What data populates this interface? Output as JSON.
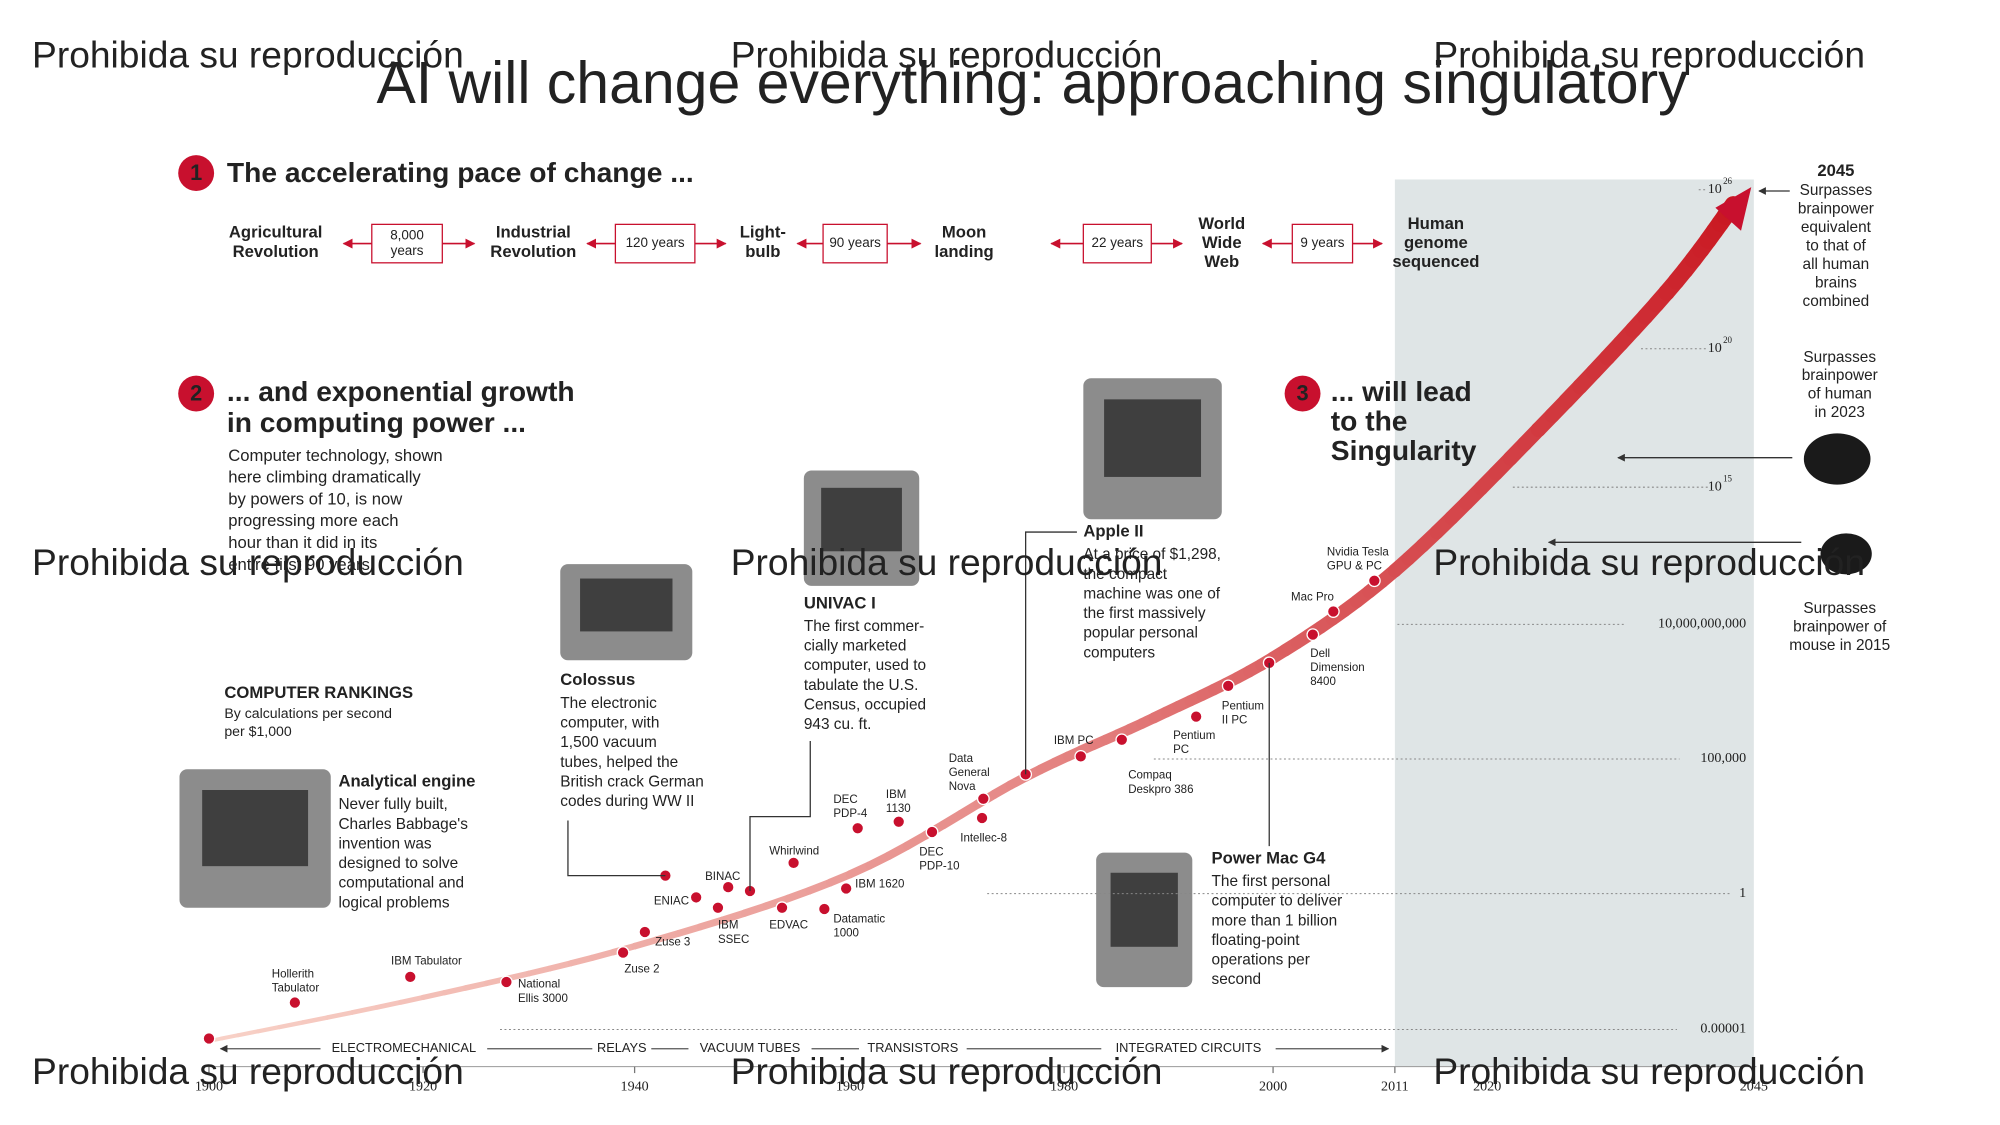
{
  "title": "AI will change everything: approaching singulatory",
  "watermark": "Prohibida su reproducción",
  "section1": {
    "number": "1",
    "heading": "The accelerating pace of change ..."
  },
  "timeline": {
    "events": [
      [
        "Agricultural",
        "Revolution"
      ],
      [
        "Industrial",
        "Revolution"
      ],
      [
        "Light-",
        "bulb"
      ],
      [
        "Moon",
        "landing"
      ],
      [
        "World",
        "Wide",
        "Web"
      ],
      [
        "Human",
        "genome",
        "sequenced"
      ]
    ],
    "intervals": [
      [
        "8,000",
        "years"
      ],
      [
        "120 years"
      ],
      [
        "90 years"
      ],
      [
        "22 years"
      ],
      [
        "9 years"
      ]
    ]
  },
  "section2": {
    "number": "2",
    "heading": [
      "... and exponential growth",
      "in computing power ..."
    ],
    "body": [
      "Computer technology, shown",
      "here climbing dramatically",
      "by powers of 10, is now",
      "progressing more each",
      "hour than it did in its",
      "entire first 90 years"
    ]
  },
  "section3": {
    "number": "3",
    "heading": [
      "... will lead",
      "to the",
      "Singularity"
    ]
  },
  "rankings": {
    "title": "COMPUTER RANKINGS",
    "subtitle": [
      "By calculations per second",
      "per $1,000"
    ]
  },
  "callouts": [
    {
      "name": "Analytical engine",
      "body": [
        "Never fully built,",
        "Charles Babbage's",
        "invention was",
        "designed to solve",
        "computational and",
        "logical problems"
      ]
    },
    {
      "name": "Colossus",
      "body": [
        "The electronic",
        "computer, with",
        "1,500 vacuum",
        "tubes, helped the",
        "British crack German",
        "codes during WW II"
      ]
    },
    {
      "name": "UNIVAC I",
      "body": [
        "The first commer-",
        "cially marketed",
        "computer, used to",
        "tabulate the U.S.",
        "Census, occupied",
        "943 cu. ft."
      ]
    },
    {
      "name": "Apple II",
      "body": [
        "At a price of $1,298,",
        "the compact",
        "machine was one of",
        "the first massively",
        "popular personal",
        "computers"
      ]
    },
    {
      "name": "Power Mac G4",
      "body": [
        "The first personal",
        "computer to deliver",
        "more than 1 billion",
        "floating-point",
        "operations per",
        "second"
      ]
    }
  ],
  "milestones": [
    [
      "Hollerith",
      "Tabulator"
    ],
    [
      "IBM Tabulator"
    ],
    [
      "National",
      "Ellis 3000"
    ],
    [
      "Zuse 2"
    ],
    [
      "Zuse 3"
    ],
    [
      "ENIAC"
    ],
    [
      "BINAC"
    ],
    [
      "IBM",
      "SSEC"
    ],
    [
      "Whirlwind"
    ],
    [
      "EDVAC"
    ],
    [
      "Datamatic",
      "1000"
    ],
    [
      "IBM 1620"
    ],
    [
      "DEC",
      "PDP-4"
    ],
    [
      "IBM",
      "1130"
    ],
    [
      "DEC",
      "PDP-10"
    ],
    [
      "Data",
      "General",
      "Nova"
    ],
    [
      "Intellec-8"
    ],
    [
      "IBM PC"
    ],
    [
      "Compaq",
      "Deskpro 386"
    ],
    [
      "Pentium",
      "PC"
    ],
    [
      "Pentium",
      "II PC"
    ],
    [
      "Mac Pro"
    ],
    [
      "Dell",
      "Dimension",
      "8400"
    ],
    [
      "Nvidia Tesla",
      "GPU & PC"
    ]
  ],
  "yaxis": [
    {
      "base": "10",
      "exp": "26"
    },
    {
      "base": "10",
      "exp": "20"
    },
    {
      "base": "10",
      "exp": "15"
    },
    "10,000,000,000",
    "100,000",
    "1",
    "0.00001"
  ],
  "xaxis": [
    "1900",
    "1920",
    "1940",
    "1960",
    "1980",
    "2000",
    "2011",
    "2020",
    "2045"
  ],
  "eras": [
    "ELECTROMECHANICAL",
    "RELAYS",
    "VACUUM TUBES",
    "TRANSISTORS",
    "INTEGRATED CIRCUITS"
  ],
  "annotations": {
    "target": {
      "year": "2045",
      "body": [
        "Surpasses",
        "brainpower",
        "equivalent",
        "to that of",
        "all human",
        "brains",
        "combined"
      ]
    },
    "human": [
      "Surpasses",
      "brainpower",
      "of human",
      "in 2023"
    ],
    "mouse": [
      "Surpasses",
      "brainpower of",
      "mouse in 2015"
    ]
  }
}
